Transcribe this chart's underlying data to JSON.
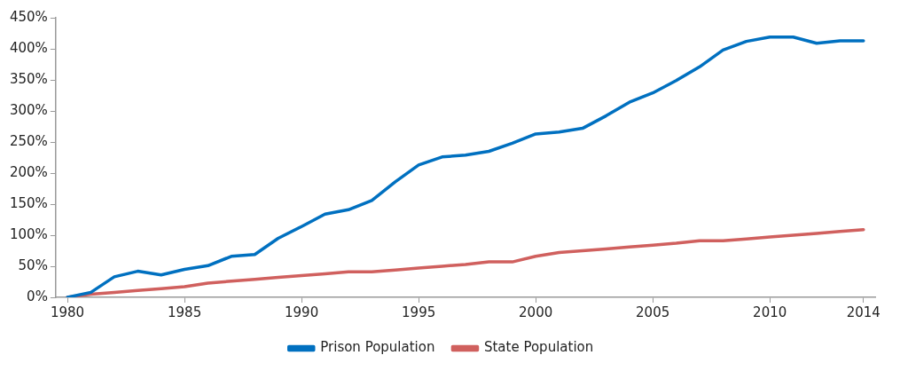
{
  "chart_data": {
    "type": "line",
    "x": [
      1980,
      1981,
      1982,
      1983,
      1984,
      1985,
      1986,
      1987,
      1988,
      1989,
      1990,
      1991,
      1992,
      1993,
      1994,
      1995,
      1996,
      1997,
      1998,
      1999,
      2000,
      2001,
      2002,
      2003,
      2004,
      2005,
      2006,
      2007,
      2008,
      2009,
      2010,
      2011,
      2012,
      2013,
      2014
    ],
    "series": [
      {
        "name": "Prison Population",
        "color": "#0070c0",
        "values": [
          0,
          8,
          33,
          42,
          36,
          45,
          51,
          66,
          69,
          95,
          114,
          134,
          141,
          156,
          186,
          213,
          226,
          229,
          235,
          248,
          263,
          266,
          272,
          292,
          314,
          329,
          349,
          371,
          398,
          412,
          419,
          419,
          409,
          413,
          413
        ]
      },
      {
        "name": "State Population",
        "color": "#d0605e",
        "values": [
          0,
          5,
          8,
          11,
          14,
          17,
          23,
          26,
          29,
          32,
          35,
          38,
          41,
          41,
          44,
          47,
          50,
          53,
          57,
          57,
          66,
          72,
          75,
          78,
          81,
          84,
          87,
          91,
          91,
          94,
          97,
          100,
          103,
          106,
          109
        ]
      }
    ],
    "xlim": [
      1979.5,
      2014.5
    ],
    "xticks": [
      1980,
      1985,
      1990,
      1995,
      2000,
      2005,
      2010,
      2014
    ],
    "ylim": [
      0,
      450
    ],
    "yticks": [
      {
        "value": 0,
        "label": "0%"
      },
      {
        "value": 50,
        "label": "50%"
      },
      {
        "value": 100,
        "label": "100%"
      },
      {
        "value": 150,
        "label": "150%"
      },
      {
        "value": 200,
        "label": "200%"
      },
      {
        "value": 250,
        "label": "250%"
      },
      {
        "value": 300,
        "label": "300%"
      },
      {
        "value": 350,
        "label": "350%"
      },
      {
        "value": 400,
        "label": "400%"
      },
      {
        "value": 450,
        "label": "450%"
      }
    ],
    "grid": false,
    "legend": "bottom",
    "marker": "none",
    "line_style": "solid"
  }
}
